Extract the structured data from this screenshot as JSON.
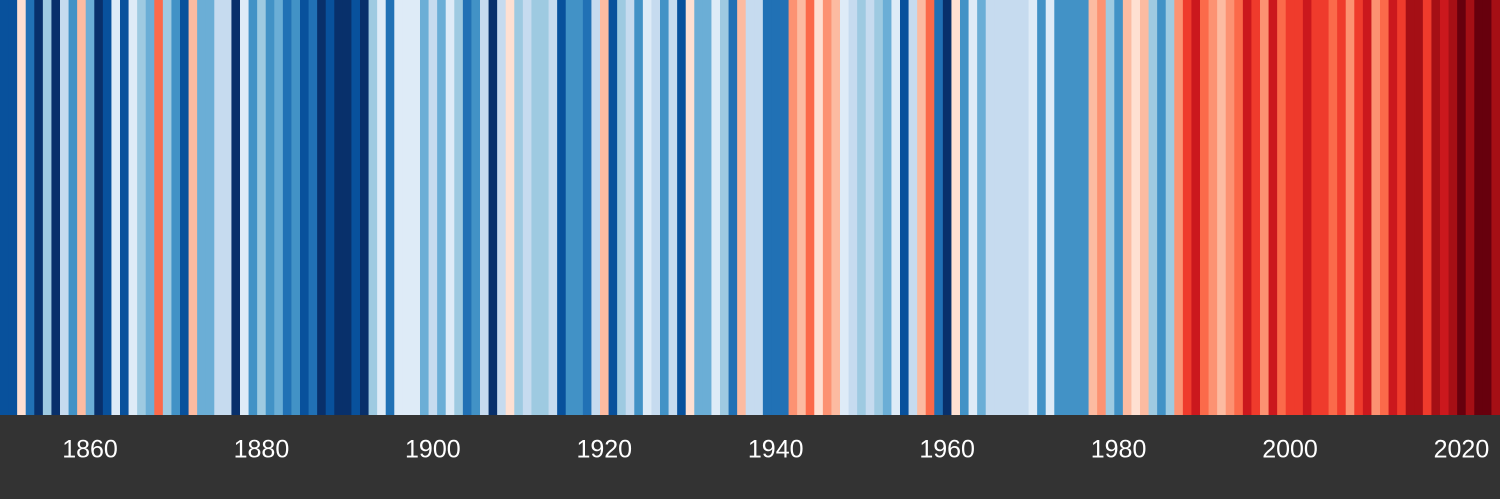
{
  "chart_data": {
    "type": "stripes",
    "x": [
      1850,
      1851,
      1852,
      1853,
      1854,
      1855,
      1856,
      1857,
      1858,
      1859,
      1860,
      1861,
      1862,
      1863,
      1864,
      1865,
      1866,
      1867,
      1868,
      1869,
      1870,
      1871,
      1872,
      1873,
      1874,
      1875,
      1876,
      1877,
      1878,
      1879,
      1880,
      1881,
      1882,
      1883,
      1884,
      1885,
      1886,
      1887,
      1888,
      1889,
      1890,
      1891,
      1892,
      1893,
      1894,
      1895,
      1896,
      1897,
      1898,
      1899,
      1900,
      1901,
      1902,
      1903,
      1904,
      1905,
      1906,
      1907,
      1908,
      1909,
      1910,
      1911,
      1912,
      1913,
      1914,
      1915,
      1916,
      1917,
      1918,
      1919,
      1920,
      1921,
      1922,
      1923,
      1924,
      1925,
      1926,
      1927,
      1928,
      1929,
      1930,
      1931,
      1932,
      1933,
      1934,
      1935,
      1936,
      1937,
      1938,
      1939,
      1940,
      1941,
      1942,
      1943,
      1944,
      1945,
      1946,
      1947,
      1948,
      1949,
      1950,
      1951,
      1952,
      1953,
      1954,
      1955,
      1956,
      1957,
      1958,
      1959,
      1960,
      1961,
      1962,
      1963,
      1964,
      1965,
      1966,
      1967,
      1968,
      1969,
      1970,
      1971,
      1972,
      1973,
      1974,
      1975,
      1976,
      1977,
      1978,
      1979,
      1980,
      1981,
      1982,
      1983,
      1984,
      1985,
      1986,
      1987,
      1988,
      1989,
      1990,
      1991,
      1992,
      1993,
      1994,
      1995,
      1996,
      1997,
      1998,
      1999,
      2000,
      2001,
      2002,
      2003,
      2004,
      2005,
      2006,
      2007,
      2008,
      2009,
      2010,
      2011,
      2012,
      2013,
      2014,
      2015,
      2016,
      2017,
      2018,
      2019,
      2020,
      2021,
      2022,
      2023,
      2024
    ],
    "values": [
      -0.65,
      -0.65,
      0.05,
      -0.55,
      -0.75,
      -0.25,
      -0.75,
      -0.15,
      -0.45,
      0.15,
      -0.35,
      -0.75,
      -0.65,
      -0.05,
      -0.65,
      -0.05,
      -0.25,
      -0.35,
      0.35,
      -0.25,
      -0.45,
      -0.65,
      0.15,
      -0.35,
      -0.35,
      -0.15,
      -0.15,
      -0.75,
      -0.05,
      -0.45,
      -0.25,
      -0.45,
      -0.35,
      -0.55,
      -0.45,
      -0.65,
      -0.55,
      -0.75,
      -0.65,
      -0.75,
      -0.75,
      -0.65,
      -0.75,
      -0.25,
      -0.05,
      -0.55,
      -0.05,
      -0.05,
      -0.05,
      -0.35,
      -0.15,
      -0.35,
      -0.05,
      -0.25,
      -0.55,
      -0.45,
      -0.15,
      -0.75,
      -0.15,
      0.05,
      -0.25,
      -0.15,
      -0.25,
      -0.25,
      -0.15,
      -0.65,
      -0.45,
      -0.45,
      -0.55,
      -0.15,
      0.15,
      -0.65,
      -0.25,
      -0.15,
      -0.45,
      -0.05,
      -0.15,
      -0.45,
      -0.15,
      -0.65,
      0.05,
      -0.35,
      -0.35,
      -0.05,
      -0.25,
      -0.55,
      0.15,
      -0.15,
      -0.15,
      -0.55,
      -0.55,
      -0.55,
      0.25,
      0.15,
      0.35,
      0.05,
      0.25,
      0.15,
      -0.05,
      -0.15,
      -0.25,
      -0.15,
      -0.25,
      -0.35,
      -0.05,
      -0.65,
      -0.15,
      0.15,
      0.35,
      -0.55,
      -0.75,
      0.05,
      -0.45,
      -0.05,
      -0.35,
      -0.15,
      -0.15,
      -0.15,
      -0.15,
      -0.15,
      -0.05,
      -0.45,
      -0.05,
      -0.45,
      -0.45,
      -0.45,
      -0.45,
      0.15,
      0.25,
      -0.25,
      -0.45,
      0.15,
      0.05,
      0.15,
      -0.25,
      -0.45,
      -0.25,
      0.25,
      0.45,
      0.55,
      0.35,
      0.25,
      0.15,
      0.25,
      0.35,
      0.55,
      0.45,
      0.25,
      0.55,
      0.35,
      0.45,
      0.45,
      0.55,
      0.45,
      0.45,
      0.35,
      0.45,
      0.25,
      0.45,
      0.55,
      0.25,
      0.35,
      0.55,
      0.45,
      0.65,
      0.65,
      0.45,
      0.65,
      0.55,
      0.65,
      0.75,
      0.65,
      0.75,
      0.75,
      0.65
    ],
    "vlim": [
      -0.8,
      0.8
    ],
    "colors": [
      "#08306b",
      "#08519c",
      "#2171b5",
      "#4292c6",
      "#6baed6",
      "#9ecae1",
      "#c6dbef",
      "#deebf7",
      "#fee0d2",
      "#fcbba1",
      "#fc9272",
      "#fb6a4a",
      "#ef3b2c",
      "#cb181d",
      "#a50f15",
      "#67000d"
    ],
    "xlim": [
      1850,
      2025
    ],
    "xticks": [
      1860,
      1880,
      1900,
      1920,
      1940,
      1960,
      1980,
      2000,
      2020
    ]
  }
}
